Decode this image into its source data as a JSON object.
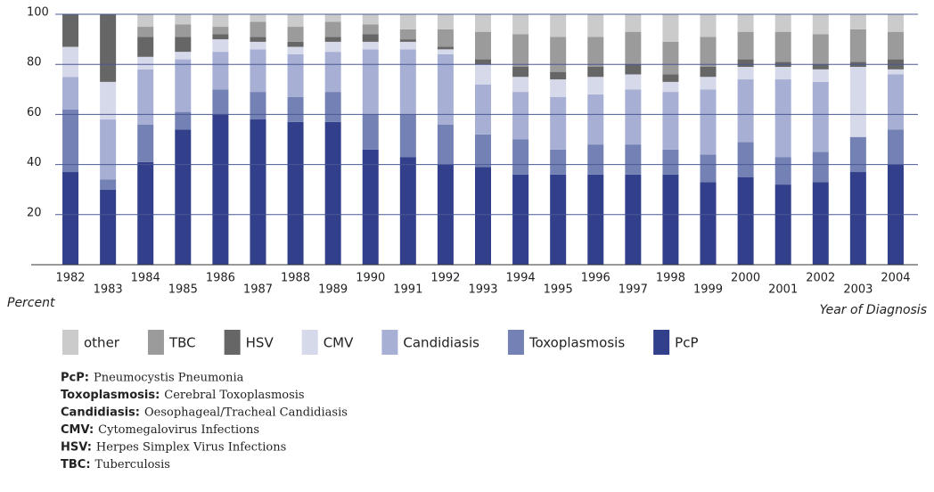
{
  "chart_data": {
    "type": "stacked_bar",
    "categories": [
      "1982",
      "1983",
      "1984",
      "1985",
      "1986",
      "1987",
      "1988",
      "1989",
      "1990",
      "1991",
      "1992",
      "1993",
      "1994",
      "1995",
      "1996",
      "1997",
      "1998",
      "1999",
      "2000",
      "2001",
      "2002",
      "2003",
      "2004"
    ],
    "series": [
      {
        "name": "PcP",
        "color": "#323f8b",
        "values": [
          37,
          30,
          41,
          54,
          60,
          58,
          57,
          57,
          46,
          43,
          40,
          39,
          36,
          36,
          36,
          36,
          36,
          33,
          35,
          32,
          33,
          37,
          40
        ]
      },
      {
        "name": "Toxoplasmosis",
        "color": "#7381b4",
        "values": [
          25,
          4,
          15,
          7,
          10,
          11,
          10,
          12,
          14,
          17,
          16,
          13,
          14,
          10,
          12,
          12,
          10,
          11,
          14,
          11,
          12,
          14,
          14
        ]
      },
      {
        "name": "Candidiasis",
        "color": "#a7b0d4",
        "values": [
          13,
          24,
          22,
          21,
          15,
          17,
          17,
          16,
          26,
          26,
          28,
          20,
          19,
          21,
          20,
          22,
          23,
          26,
          25,
          31,
          28,
          0,
          22
        ]
      },
      {
        "name": "CMV",
        "color": "#d5d9ea",
        "values": [
          12,
          15,
          5,
          3,
          5,
          3,
          3,
          4,
          3,
          3,
          2,
          8,
          6,
          7,
          7,
          6,
          4,
          5,
          5,
          5,
          5,
          28,
          2
        ]
      },
      {
        "name": "HSV",
        "color": "#666666",
        "values": [
          13,
          27,
          8,
          6,
          2,
          2,
          2,
          2,
          3,
          1,
          1,
          2,
          4,
          3,
          4,
          4,
          3,
          4,
          3,
          2,
          2,
          2,
          4
        ]
      },
      {
        "name": "TBC",
        "color": "#9b9b9b",
        "values": [
          0,
          0,
          4,
          5,
          3,
          6,
          6,
          6,
          4,
          4,
          7,
          11,
          13,
          14,
          12,
          13,
          13,
          12,
          11,
          12,
          12,
          13,
          11
        ]
      },
      {
        "name": "other",
        "color": "#cbcbcb",
        "values": [
          0,
          0,
          5,
          4,
          5,
          3,
          5,
          3,
          4,
          6,
          6,
          7,
          8,
          9,
          9,
          7,
          11,
          9,
          7,
          7,
          8,
          6,
          7
        ]
      }
    ],
    "ylim": [
      0,
      100
    ],
    "yticks": [
      20,
      40,
      60,
      80,
      100
    ],
    "grid": true,
    "y_label": "Percent",
    "x_label": "Year of Diagnosis",
    "notes": [
      {
        "term": "PcP:",
        "text": "Pneumocystis Pneumonia"
      },
      {
        "term": "Toxoplasmosis:",
        "text": "Cerebral Toxoplasmosis"
      },
      {
        "term": "Candidiasis:",
        "text": "Oesophageal/Tracheal Candidiasis"
      },
      {
        "term": "CMV:",
        "text": "Cytomegalovirus Infections"
      },
      {
        "term": "HSV:",
        "text": "Herpes Simplex Virus Infections"
      },
      {
        "term": "TBC:",
        "text": "Tuberculosis"
      }
    ]
  }
}
